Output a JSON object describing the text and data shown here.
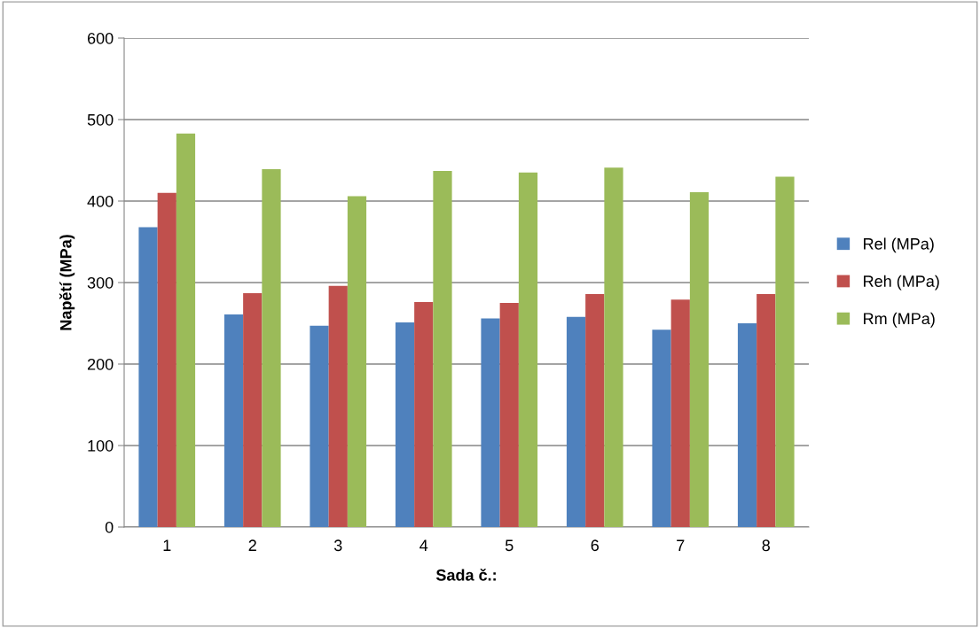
{
  "chart_data": {
    "type": "bar",
    "xlabel": "Sada č.:",
    "ylabel": "Napětí (MPa)",
    "categories": [
      "1",
      "2",
      "3",
      "4",
      "5",
      "6",
      "7",
      "8"
    ],
    "series": [
      {
        "name": "Rel (MPa)",
        "color": "#4f81bd",
        "values": [
          368,
          261,
          247,
          251,
          256,
          258,
          242,
          250
        ]
      },
      {
        "name": "Reh (MPa)",
        "color": "#c0504d",
        "values": [
          410,
          287,
          296,
          276,
          275,
          286,
          279,
          286
        ]
      },
      {
        "name": "Rm (MPa)",
        "color": "#9bbb59",
        "values": [
          483,
          439,
          406,
          437,
          435,
          441,
          411,
          430
        ]
      }
    ],
    "ylim": [
      0,
      600
    ],
    "yticks": [
      0,
      100,
      200,
      300,
      400,
      500,
      600
    ],
    "grid": "y",
    "legend": "right"
  }
}
